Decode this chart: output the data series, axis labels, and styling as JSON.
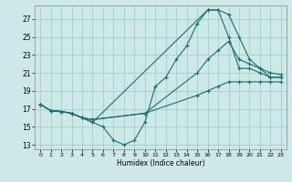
{
  "xlabel": "Humidex (Indice chaleur)",
  "bg_color": "#cce8e8",
  "line_color": "#1a7068",
  "grid_color": "#a8cccc",
  "xlim": [
    -0.5,
    23.5
  ],
  "ylim": [
    12.5,
    28.5
  ],
  "xticks": [
    0,
    1,
    2,
    3,
    4,
    5,
    6,
    7,
    8,
    9,
    10,
    11,
    12,
    13,
    14,
    15,
    16,
    17,
    18,
    19,
    20,
    21,
    22,
    23
  ],
  "yticks": [
    13,
    15,
    17,
    19,
    21,
    23,
    25,
    27
  ],
  "series": [
    {
      "x": [
        0,
        1,
        2,
        3,
        4,
        5,
        6,
        7,
        8,
        9,
        10,
        11,
        12,
        13,
        14,
        15,
        16,
        17,
        18,
        19,
        20,
        21,
        22,
        23
      ],
      "y": [
        17.5,
        16.8,
        16.7,
        16.5,
        16.0,
        15.5,
        15.0,
        13.5,
        13.0,
        13.5,
        15.5,
        19.5,
        20.5,
        22.5,
        24.0,
        26.5,
        28.0,
        28.0,
        25.0,
        21.5,
        21.5,
        21.0,
        20.5,
        20.5
      ]
    },
    {
      "x": [
        0,
        1,
        2,
        3,
        4,
        5,
        16,
        17,
        18,
        19,
        20,
        21,
        22,
        23
      ],
      "y": [
        17.5,
        16.8,
        16.7,
        16.5,
        16.0,
        15.5,
        28.0,
        28.0,
        27.5,
        25.0,
        22.5,
        21.5,
        20.5,
        20.5
      ]
    },
    {
      "x": [
        0,
        1,
        2,
        3,
        4,
        5,
        10,
        15,
        16,
        17,
        18,
        19,
        20,
        21,
        22,
        23
      ],
      "y": [
        17.5,
        16.8,
        16.7,
        16.5,
        16.0,
        15.8,
        16.5,
        21.0,
        22.5,
        23.5,
        24.5,
        22.5,
        22.0,
        21.5,
        21.0,
        20.8
      ]
    },
    {
      "x": [
        0,
        1,
        2,
        3,
        4,
        5,
        10,
        15,
        16,
        17,
        18,
        19,
        20,
        21,
        22,
        23
      ],
      "y": [
        17.5,
        16.8,
        16.7,
        16.5,
        16.0,
        15.8,
        16.5,
        18.5,
        19.0,
        19.5,
        20.0,
        20.0,
        20.0,
        20.0,
        20.0,
        20.0
      ]
    }
  ]
}
